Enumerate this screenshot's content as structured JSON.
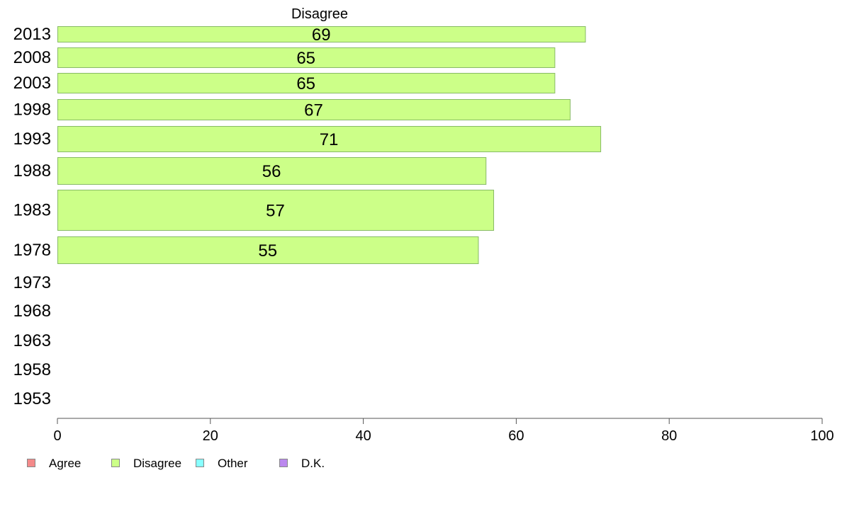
{
  "chart_data": {
    "type": "bar",
    "orientation": "horizontal",
    "title": "Disagree",
    "categories": [
      "2013",
      "2008",
      "2003",
      "1998",
      "1993",
      "1988",
      "1983",
      "1978",
      "1973",
      "1968",
      "1963",
      "1958",
      "1953"
    ],
    "series": [
      {
        "name": "Disagree",
        "color": "#ccff88",
        "values": [
          69,
          65,
          65,
          67,
          71,
          56,
          57,
          55,
          null,
          null,
          null,
          null,
          null
        ]
      }
    ],
    "xlim": [
      0,
      100
    ],
    "xticks": [
      "0",
      "20",
      "40",
      "60",
      "80",
      "100"
    ],
    "grid": false,
    "legend_position": "bottom-left"
  },
  "legend": {
    "items": [
      {
        "label": "Agree",
        "color": "#f48a8a"
      },
      {
        "label": "Disagree",
        "color": "#ccff88"
      },
      {
        "label": "Other",
        "color": "#88ffff"
      },
      {
        "label": "D.K.",
        "color": "#bb88ee"
      }
    ]
  }
}
